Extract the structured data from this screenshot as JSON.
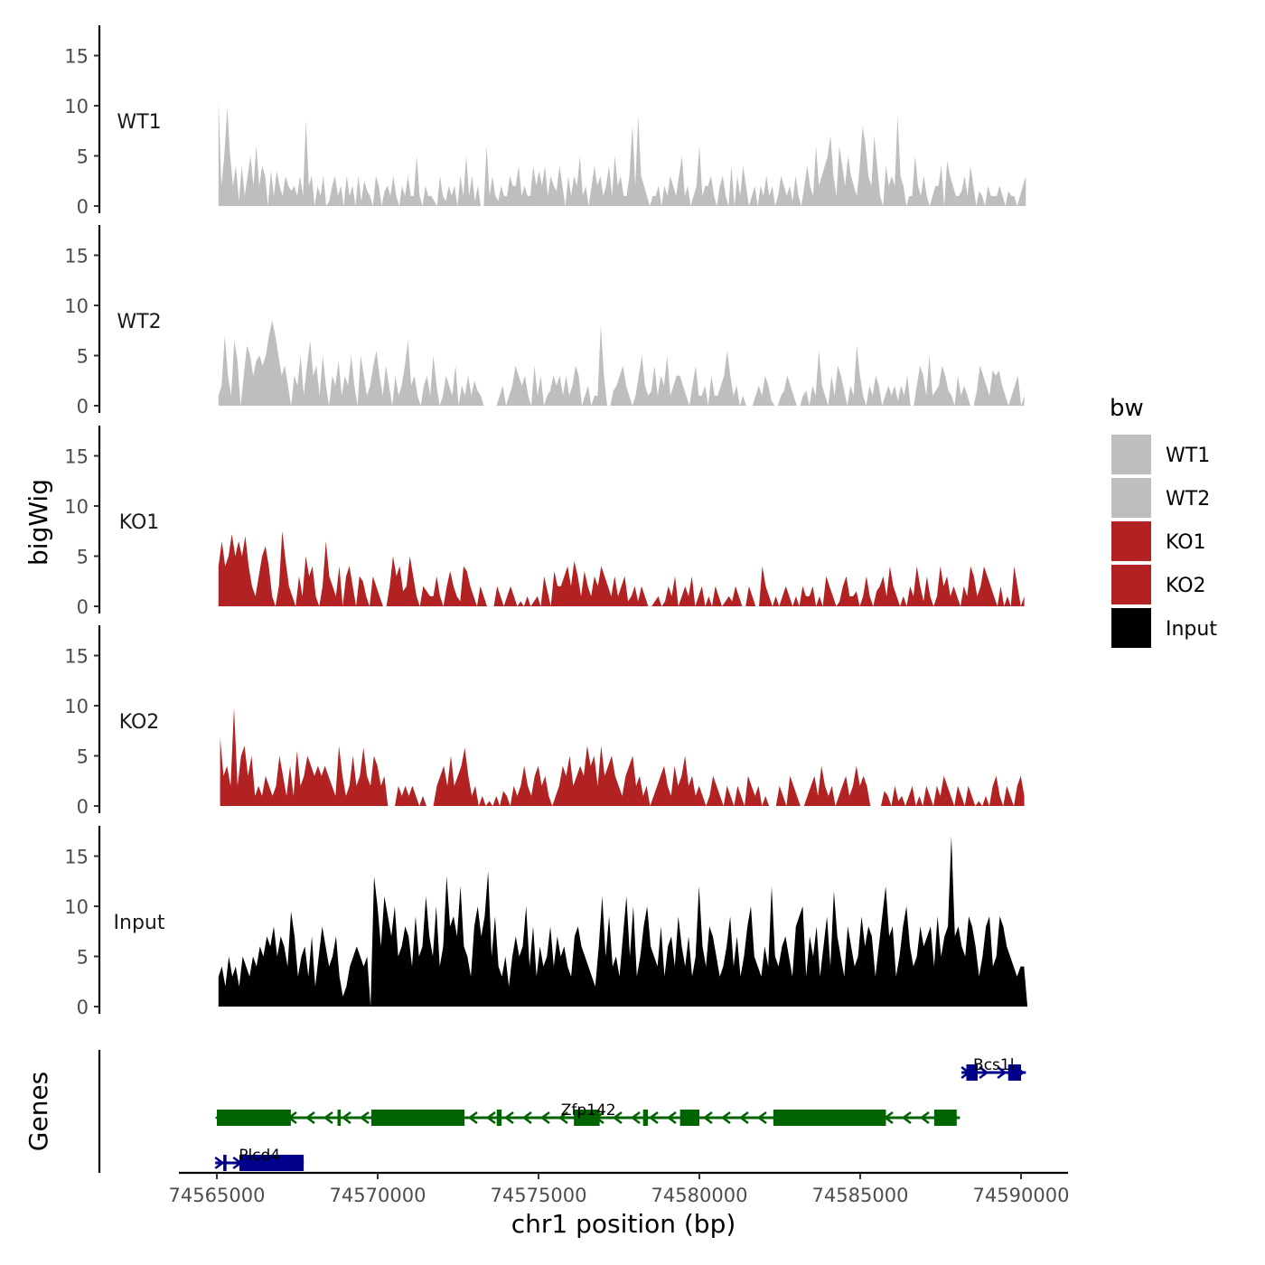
{
  "chart_data": {
    "type": "area",
    "y_axis_title": "bigWig",
    "x_axis_title": "chr1 position (bp)",
    "genes_axis_title": "Genes",
    "x_range": [
      74565000,
      74590200
    ],
    "x_ticks": [
      74565000,
      74570000,
      74575000,
      74580000,
      74585000,
      74590000
    ],
    "x_tick_labels": [
      "74565000",
      "74570000",
      "74575000",
      "74580000",
      "74585000",
      "74590000"
    ],
    "y_range": [
      0,
      18
    ],
    "y_ticks": [
      0,
      5,
      10,
      15
    ],
    "y_tick_labels": [
      "0",
      "5",
      "10",
      "15"
    ],
    "legend": {
      "title": "bw",
      "position": "right",
      "entries": [
        {
          "label": "WT1",
          "color": "#bebebe"
        },
        {
          "label": "WT2",
          "color": "#bebebe"
        },
        {
          "label": "KO1",
          "color": "#b22222"
        },
        {
          "label": "KO2",
          "color": "#b22222"
        },
        {
          "label": "Input",
          "color": "#000000"
        }
      ]
    },
    "series": [
      {
        "name": "WT1",
        "color": "#bebebe",
        "x_start": 74565050,
        "x_end": 74590150,
        "values": [
          10.5,
          2,
          5,
          9.8,
          5,
          2,
          4,
          0.5,
          4,
          1,
          3,
          5,
          2,
          6,
          2,
          4,
          3,
          0,
          3.5,
          1,
          3.5,
          2,
          1,
          3,
          2,
          1.5,
          2,
          1,
          3,
          1,
          8.5,
          2,
          3,
          0,
          2,
          1,
          3,
          0,
          0.5,
          2,
          3,
          1,
          2,
          0,
          3,
          1,
          2,
          0,
          3,
          0.5,
          2.5,
          1.5,
          1,
          0,
          3,
          2,
          0,
          1.5,
          2,
          1,
          3,
          1,
          0,
          2,
          1,
          3,
          1,
          1,
          5,
          1,
          0,
          2,
          1,
          1,
          0.5,
          0,
          3,
          1,
          0.5,
          2,
          1,
          2,
          0,
          3,
          1,
          5,
          1,
          3,
          0.5,
          2,
          0,
          0,
          6,
          1,
          3,
          1,
          0.5,
          2,
          1,
          1,
          3,
          2,
          2,
          4,
          1,
          2,
          1,
          1,
          4,
          2,
          3.5,
          2,
          4,
          1,
          3,
          2,
          1.5,
          4,
          2,
          0,
          3,
          1,
          3,
          2,
          5,
          1,
          2,
          0,
          2,
          4,
          2,
          3,
          1,
          2,
          4,
          1,
          5,
          2,
          3,
          1,
          1,
          3,
          8,
          2,
          9,
          3,
          2,
          1,
          0,
          1,
          1,
          2,
          0,
          2,
          1,
          3,
          2,
          1,
          3,
          5,
          1,
          2,
          0,
          1,
          2,
          6,
          1,
          2,
          2,
          3,
          1,
          0,
          2,
          3,
          1,
          0,
          4,
          0,
          3,
          1,
          4,
          2,
          0,
          1,
          2,
          0,
          2,
          1,
          3,
          1,
          2,
          0,
          1,
          3,
          2,
          1,
          2,
          0.5,
          3,
          1,
          0,
          2,
          4,
          2,
          1,
          6,
          2,
          3,
          4,
          5,
          7,
          3,
          1,
          6,
          4,
          2,
          5,
          3,
          2,
          1,
          4,
          8,
          6,
          3,
          2,
          7,
          4,
          1,
          0,
          4,
          2,
          3,
          2,
          9,
          3,
          2,
          0,
          1,
          1,
          5,
          2,
          1,
          3,
          1,
          0,
          1,
          2,
          2,
          4,
          0,
          4.5,
          3,
          2,
          1,
          1,
          1.5,
          3,
          1,
          4,
          2,
          0,
          1.5,
          1,
          0,
          2,
          1,
          1,
          1,
          2,
          1,
          0,
          1.5,
          1,
          1,
          0,
          1,
          2,
          3
        ]
      },
      {
        "name": "WT2",
        "color": "#bebebe",
        "x_start": 74565050,
        "x_end": 74590100,
        "values": [
          1,
          2,
          7,
          3,
          1,
          6.5,
          4.5,
          0,
          3,
          6,
          5,
          3,
          4.5,
          5,
          4,
          5,
          7,
          8.5,
          7,
          5,
          3,
          4,
          2,
          0,
          3,
          2,
          5,
          1,
          4,
          6.5,
          3,
          4,
          1,
          5,
          2,
          0,
          3,
          2,
          4.5,
          1,
          3,
          2,
          5,
          2,
          0,
          5,
          3,
          1,
          2,
          4,
          5.5,
          3,
          1,
          4,
          2,
          0,
          3,
          1,
          2,
          4,
          6.5,
          2,
          3,
          1,
          0,
          2,
          3,
          1,
          5,
          2,
          0,
          1,
          3,
          2,
          1,
          4,
          0,
          2,
          1,
          3,
          1,
          2.5,
          1.5,
          1,
          0,
          0,
          0,
          0,
          0,
          1,
          2,
          0,
          1,
          2,
          4,
          3,
          2,
          3,
          1,
          0,
          4,
          1,
          3,
          0,
          1,
          1.5,
          3,
          2,
          3,
          1,
          3,
          1,
          2,
          4,
          3,
          0,
          1,
          2,
          0,
          1,
          1,
          8,
          3,
          0,
          0,
          1.5,
          2,
          3,
          4,
          2,
          1,
          0,
          1,
          3,
          5,
          2,
          1,
          1.5,
          4,
          1,
          3,
          2,
          5,
          1,
          2,
          3,
          3,
          2,
          1,
          0,
          2,
          4,
          1,
          1,
          2,
          0,
          3,
          1,
          1,
          2,
          3,
          5.5,
          3,
          1,
          2,
          0,
          1,
          0,
          0,
          0,
          1,
          2,
          1,
          3,
          2,
          0.5,
          0,
          0,
          1,
          1.5,
          3,
          2,
          1,
          0,
          0,
          1,
          1.5,
          0,
          2,
          1,
          5.5,
          2,
          1,
          0,
          3,
          1,
          4,
          3,
          1.5,
          0,
          2,
          1,
          6,
          3,
          1,
          0,
          2,
          1,
          3,
          2,
          0,
          1,
          2,
          1,
          2,
          0.5,
          2,
          1,
          3,
          0,
          0,
          2,
          4,
          3,
          1,
          5,
          1,
          1.5,
          2,
          4,
          3,
          1.5,
          1,
          0,
          3,
          1,
          2,
          1,
          0,
          0,
          1.5,
          4,
          3,
          2,
          1,
          3.5,
          3,
          3.5,
          2,
          1,
          0,
          1,
          2,
          3,
          0,
          1
        ]
      },
      {
        "name": "KO1",
        "color": "#b22222",
        "x_start": 74565050,
        "x_end": 74590100,
        "values": [
          4,
          6.5,
          4,
          5,
          7.2,
          5,
          6.5,
          5,
          7,
          4,
          2,
          1,
          3,
          5,
          6,
          4,
          1,
          0,
          2,
          7.5,
          4.5,
          2,
          1,
          0,
          3,
          1,
          5,
          3,
          4,
          1,
          0,
          2,
          6.5,
          3,
          2,
          1,
          4,
          0,
          3,
          4,
          2,
          0,
          3,
          2.5,
          1,
          0,
          3,
          2,
          1,
          0,
          0,
          2,
          5,
          3,
          4,
          1.5,
          2,
          5,
          3,
          1,
          0,
          2,
          1.5,
          1,
          1,
          3,
          1,
          0,
          2,
          3.5,
          2,
          1,
          0.5,
          4,
          3.5,
          2,
          1,
          0,
          2,
          1,
          0,
          0,
          0,
          2,
          1,
          0,
          1,
          2,
          1,
          0,
          0.5,
          0,
          1,
          0,
          0.5,
          1,
          0,
          3,
          1.5,
          0,
          3.5,
          2,
          2,
          3,
          4,
          2,
          4.5,
          3,
          1,
          3.5,
          2,
          1,
          3,
          2,
          4,
          3,
          2,
          1,
          3,
          1,
          2,
          3,
          0.5,
          1,
          2,
          0.5,
          2,
          1,
          0,
          0,
          0.5,
          1,
          0,
          0.5,
          2,
          1,
          3,
          0,
          1,
          2,
          1,
          3,
          0,
          1,
          2,
          0,
          1,
          0,
          2,
          1,
          0,
          0.5,
          1,
          0.5,
          2,
          1,
          0,
          0,
          2,
          1,
          0,
          0,
          4,
          2,
          1,
          0,
          1,
          0,
          1,
          2,
          1,
          0,
          1,
          0,
          2,
          1,
          1,
          2,
          0,
          1,
          0,
          3,
          2,
          1,
          0,
          0.5,
          2,
          3,
          1,
          1,
          1.5,
          0,
          1,
          3,
          1,
          0,
          1.5,
          2,
          3,
          1,
          4,
          2,
          1,
          0,
          1,
          0,
          2,
          1,
          4,
          2,
          0.5,
          3,
          1,
          0,
          1,
          4,
          2,
          3,
          1,
          2,
          1,
          0,
          2,
          1,
          4,
          3,
          1,
          2,
          4,
          3,
          2,
          1,
          0,
          2,
          0,
          1,
          0,
          4,
          2,
          0,
          1
        ]
      },
      {
        "name": "KO2",
        "color": "#b22222",
        "x_start": 74565100,
        "x_end": 74590100,
        "values": [
          6.8,
          3,
          4,
          2,
          9.8,
          2,
          5,
          6,
          3,
          5,
          1,
          2,
          1,
          3,
          2,
          1,
          2,
          5,
          3,
          1,
          4,
          1,
          5.5,
          2,
          3,
          5,
          4,
          3,
          4,
          3,
          4,
          3,
          2,
          1,
          6,
          3,
          1,
          2,
          5,
          2,
          3,
          5.8,
          3,
          2,
          5,
          4,
          2,
          3,
          0,
          0,
          0,
          2,
          1,
          2,
          1,
          2,
          1,
          0,
          1,
          0,
          0,
          0,
          2,
          3,
          4,
          2,
          5,
          2,
          3,
          4,
          5.8,
          3,
          1,
          2,
          0,
          1,
          0,
          0.5,
          0,
          1,
          0,
          1.5,
          1,
          0,
          2,
          1,
          2,
          4,
          2,
          1,
          3,
          4,
          2,
          3,
          1,
          0,
          1,
          2,
          4,
          3,
          5,
          2,
          3,
          4,
          3,
          6,
          4,
          5,
          2,
          6,
          3,
          4,
          5,
          3,
          2,
          1,
          3,
          4,
          5,
          2,
          3,
          1,
          2,
          0,
          1,
          2,
          3,
          4,
          2,
          1,
          4,
          2,
          3,
          5,
          2,
          3,
          1,
          2,
          1,
          0,
          1,
          3,
          2,
          1,
          0,
          2,
          1,
          0,
          2,
          1,
          0,
          3,
          2,
          1,
          2,
          0,
          1,
          0,
          0,
          0,
          2,
          1,
          0,
          3,
          2,
          1,
          0,
          0,
          1,
          2,
          3,
          1,
          4,
          2,
          1,
          2,
          0,
          1,
          2,
          3,
          1,
          2,
          4,
          2,
          3,
          2,
          0,
          0,
          0,
          0,
          1.5,
          1,
          0,
          2,
          0.5,
          1,
          0,
          1,
          2,
          0,
          1,
          0,
          2,
          1,
          0,
          2,
          1,
          3,
          2,
          1,
          0,
          2,
          1,
          0,
          2,
          1,
          0,
          0.5,
          0,
          1,
          0,
          2,
          3,
          1,
          0,
          2,
          1,
          0,
          2,
          3,
          1
        ]
      },
      {
        "name": "Input",
        "color": "#000000",
        "x_start": 74565050,
        "x_end": 74590200,
        "values": [
          3,
          4,
          2,
          5,
          3,
          4,
          2,
          5,
          4,
          3,
          5,
          4,
          6,
          5,
          7,
          6,
          8,
          5,
          7,
          6,
          4,
          9.5,
          7,
          3,
          5,
          6,
          3,
          7,
          2,
          5,
          8,
          6,
          4,
          5,
          7,
          3,
          1,
          2,
          4,
          5,
          6,
          5,
          4,
          5,
          0,
          13,
          10,
          6,
          11,
          9,
          7,
          10,
          5,
          6,
          8,
          7,
          4,
          9,
          5,
          6,
          11,
          7,
          5,
          10,
          4,
          6,
          13,
          8,
          9,
          7,
          12,
          6,
          5,
          3,
          8,
          10,
          7,
          9,
          13.5,
          5,
          9,
          4,
          3,
          5,
          2,
          5,
          7,
          5,
          6,
          10,
          4,
          8,
          3,
          6,
          4,
          5,
          8,
          4,
          7,
          5,
          6,
          4,
          3,
          7,
          8,
          6,
          5,
          4,
          3,
          2,
          6,
          11,
          5,
          9,
          4,
          5,
          3,
          7,
          11,
          5,
          10,
          3,
          5,
          8,
          10,
          6,
          5,
          4,
          8,
          3,
          6,
          7,
          4,
          9,
          6,
          4,
          7,
          3,
          5,
          12,
          6,
          4,
          8,
          7,
          5,
          3,
          4,
          6,
          9,
          4,
          7,
          3,
          5,
          8,
          10,
          5,
          4,
          3,
          6,
          4,
          12,
          5,
          4,
          6,
          7,
          5,
          3,
          8,
          9,
          10,
          3,
          7,
          5,
          8,
          3,
          6,
          9,
          4,
          11.5,
          7,
          5,
          3,
          8,
          6,
          4,
          5,
          9,
          6,
          8,
          7,
          3,
          6,
          9,
          12,
          7,
          8,
          3,
          5,
          8,
          10,
          6,
          4,
          5,
          8,
          6,
          7,
          8,
          4,
          9,
          5,
          7,
          8,
          17,
          7,
          8,
          6,
          5,
          9,
          8,
          6,
          3,
          5,
          8,
          9,
          4,
          5,
          9,
          8,
          6,
          5,
          4,
          3,
          4,
          4,
          0
        ]
      }
    ],
    "genes": [
      {
        "name": "Bcs1l",
        "strand": "+",
        "color": "#00008b",
        "start": 74588150,
        "end": 74590150,
        "exons": [
          [
            74588300,
            74588650
          ],
          [
            74589600,
            74590000
          ]
        ]
      },
      {
        "name": "Zfp142",
        "strand": "-",
        "color": "#006400",
        "start": 74565000,
        "end": 74588100,
        "exons": [
          [
            74565000,
            74567300
          ],
          [
            74568750,
            74568850
          ],
          [
            74569800,
            74572700
          ],
          [
            74573700,
            74573850
          ],
          [
            74576100,
            74576900
          ],
          [
            74578250,
            74578400
          ],
          [
            74579400,
            74580000
          ],
          [
            74582300,
            74585800
          ],
          [
            74587300,
            74588000
          ]
        ]
      },
      {
        "name": "Plcd4",
        "strand": "+",
        "color": "#00008b",
        "start": 74564950,
        "end": 74567700,
        "exons": [
          [
            74565200,
            74565300
          ],
          [
            74565700,
            74567700
          ]
        ]
      }
    ]
  }
}
